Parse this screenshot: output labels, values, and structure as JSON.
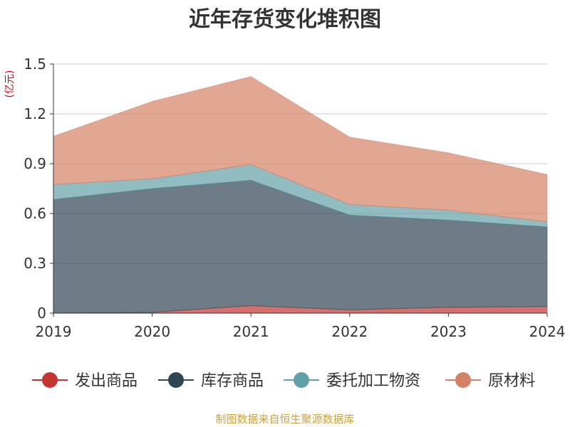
{
  "chart_data": {
    "type": "area",
    "stacked": true,
    "title": "近年存货变化堆积图",
    "unit_label": "(亿元)",
    "xlabel": "",
    "ylabel": "",
    "x": [
      "2019",
      "2020",
      "2021",
      "2022",
      "2023",
      "2024"
    ],
    "ylim": [
      0,
      1.5
    ],
    "yticks": [
      0,
      0.3,
      0.6,
      0.9,
      1.2,
      1.5
    ],
    "ytick_labels": [
      "0",
      "0.3",
      "0.6",
      "0.9",
      "1.2",
      "1.5"
    ],
    "grid": true,
    "legend_position": "bottom",
    "series": [
      {
        "name": "发出商品",
        "color": "#c23531",
        "values": [
          0.0,
          0.005,
          0.045,
          0.02,
          0.035,
          0.04
        ]
      },
      {
        "name": "库存商品",
        "color": "#2f4554",
        "values": [
          0.685,
          0.745,
          0.755,
          0.57,
          0.525,
          0.48
        ]
      },
      {
        "name": "委托加工物资",
        "color": "#61a0a8",
        "values": [
          0.09,
          0.06,
          0.095,
          0.065,
          0.06,
          0.03
        ]
      },
      {
        "name": "原材料",
        "color": "#d48265",
        "values": [
          0.29,
          0.465,
          0.53,
          0.405,
          0.345,
          0.285
        ]
      }
    ]
  },
  "source_text": "制图数据来自恒生聚源数据库"
}
